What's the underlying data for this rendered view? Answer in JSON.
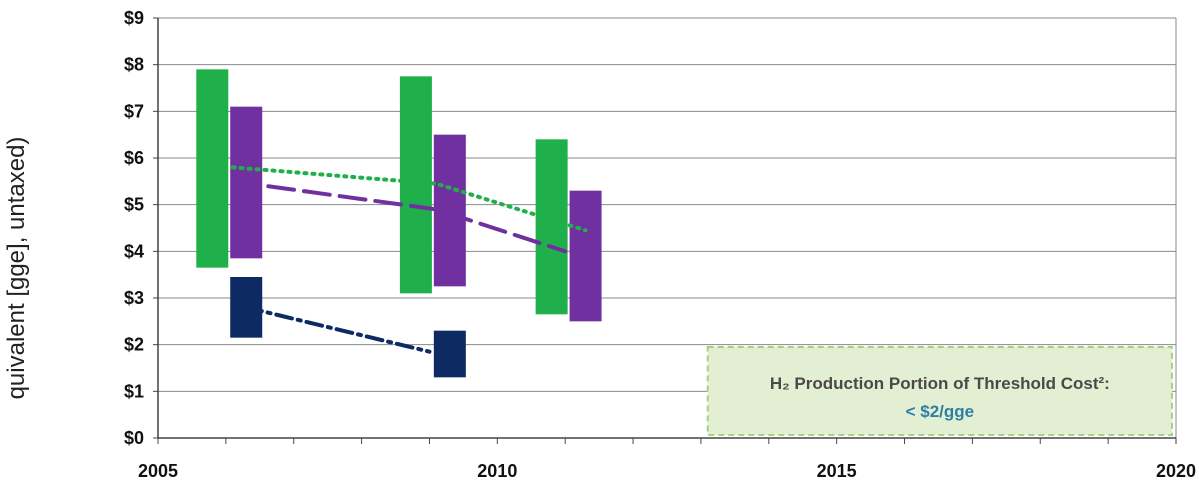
{
  "chart_data": {
    "type": "bar",
    "ylabel": "quivalent  [gge], untaxed)",
    "xlabel": "",
    "xlim": [
      2005,
      2020
    ],
    "ylim": [
      0,
      9
    ],
    "x_ticks": [
      2005,
      2010,
      2015,
      2020
    ],
    "y_ticks": [
      "$0",
      "$1",
      "$2",
      "$3",
      "$4",
      "$5",
      "$6",
      "$7",
      "$8",
      "$9"
    ],
    "grid": true,
    "colors": {
      "green": "#1fb04b",
      "purple": "#7030a0",
      "navy": "#0d2a63",
      "annotation_fill": "#e3efd3",
      "annotation_border": "#a8d080",
      "grid": "#8a8a8a"
    },
    "range_bars": [
      {
        "series": "green",
        "x": 2005.8,
        "low": 3.65,
        "high": 7.9
      },
      {
        "series": "purple",
        "x": 2006.3,
        "low": 3.85,
        "high": 7.1
      },
      {
        "series": "green",
        "x": 2008.8,
        "low": 3.1,
        "high": 7.75
      },
      {
        "series": "purple",
        "x": 2009.3,
        "low": 3.25,
        "high": 6.5
      },
      {
        "series": "green",
        "x": 2010.8,
        "low": 2.65,
        "high": 6.4
      },
      {
        "series": "purple",
        "x": 2011.3,
        "low": 2.5,
        "high": 5.3
      },
      {
        "series": "navy",
        "x": 2006.3,
        "low": 2.15,
        "high": 3.45
      },
      {
        "series": "navy",
        "x": 2009.3,
        "low": 1.3,
        "high": 2.3
      }
    ],
    "trend_lines": [
      {
        "series": "green",
        "style": "dotted",
        "points": [
          [
            2006.1,
            5.8
          ],
          [
            2009.1,
            5.45
          ],
          [
            2011.3,
            4.45
          ]
        ]
      },
      {
        "series": "purple",
        "style": "dashed",
        "points": [
          [
            2006.1,
            5.5
          ],
          [
            2009.1,
            4.9
          ],
          [
            2011.0,
            4.0
          ]
        ]
      },
      {
        "series": "navy",
        "style": "dash-dot",
        "points": [
          [
            2006.3,
            2.8
          ],
          [
            2009.0,
            1.85
          ]
        ]
      }
    ],
    "annotation": {
      "title": "H₂ Production Portion of Threshold Cost²:",
      "value": "< $2/gge",
      "x_range": [
        2013.1,
        2020
      ],
      "y_range": [
        0,
        1.95
      ]
    }
  }
}
